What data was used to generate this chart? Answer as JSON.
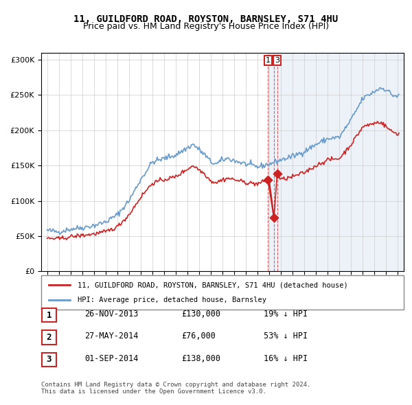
{
  "title": "11, GUILDFORD ROAD, ROYSTON, BARNSLEY, S71 4HU",
  "subtitle": "Price paid vs. HM Land Registry's House Price Index (HPI)",
  "legend_line1": "11, GUILDFORD ROAD, ROYSTON, BARNSLEY, S71 4HU (detached house)",
  "legend_line2": "HPI: Average price, detached house, Barnsley",
  "transactions": [
    {
      "num": 1,
      "date": "26-NOV-2013",
      "price": 130000,
      "pct": "19%",
      "dir": "↓"
    },
    {
      "num": 2,
      "date": "27-MAY-2014",
      "price": 76000,
      "pct": "53%",
      "dir": "↓"
    },
    {
      "num": 3,
      "date": "01-SEP-2014",
      "price": 138000,
      "pct": "16%",
      "dir": "↓"
    }
  ],
  "transaction_dates_decimal": [
    2013.9,
    2014.4,
    2014.67
  ],
  "transaction_prices": [
    130000,
    76000,
    138000
  ],
  "hpi_color": "#6699cc",
  "hpi_fill": "#ddeeff",
  "price_color": "#cc2222",
  "dashed_line_color": "#cc2222",
  "background_color": "#ffffff",
  "grid_color": "#cccccc",
  "ylim": [
    0,
    310000
  ],
  "yticks": [
    0,
    50000,
    100000,
    150000,
    200000,
    250000,
    300000
  ],
  "footer": "Contains HM Land Registry data © Crown copyright and database right 2024.\nThis data is licensed under the Open Government Licence v3.0."
}
